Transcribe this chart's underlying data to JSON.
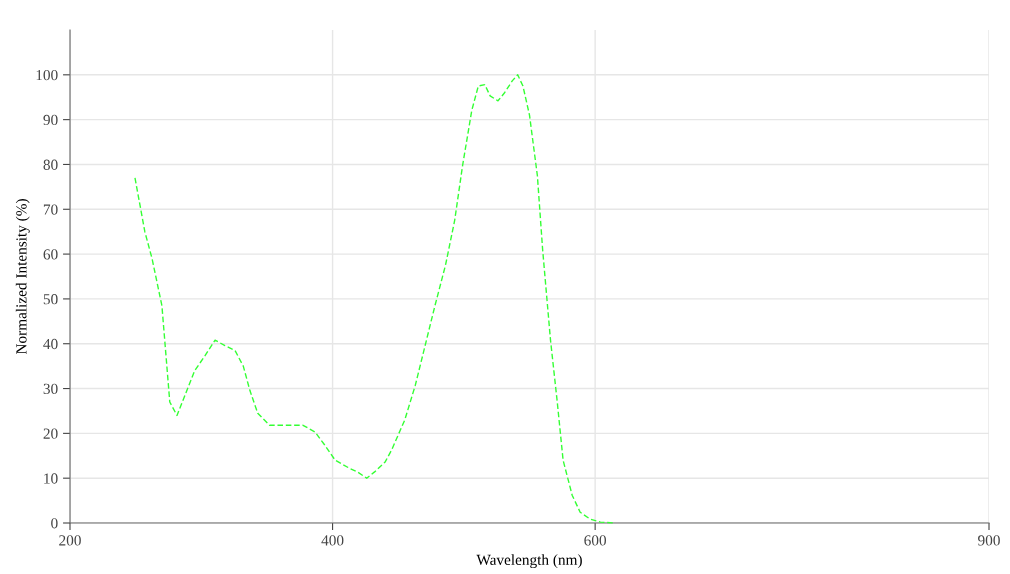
{
  "chart_data": {
    "type": "line",
    "xlabel": "Wavelength (nm)",
    "ylabel": "Normalized Intensity (%)",
    "x": [
      249.5,
      257,
      262.5,
      270,
      276,
      281.5,
      287.6,
      295,
      303,
      310.5,
      318,
      325.7,
      332,
      337,
      343,
      352,
      364,
      377.5,
      386.7,
      394,
      402,
      413,
      419,
      426,
      432,
      440,
      445,
      455,
      463,
      470.5,
      478,
      486,
      493,
      499,
      506,
      511,
      516,
      520,
      526,
      531,
      537,
      541,
      545,
      550,
      556,
      560,
      566,
      571,
      575.6,
      582.5,
      588.6,
      596,
      604,
      615
    ],
    "series": [
      {
        "color": "#33ff33",
        "values": [
          77,
          65,
          59,
          48.5,
          27,
          24,
          28.5,
          34,
          37.4,
          40.8,
          39.6,
          38.5,
          35,
          29.6,
          24.5,
          21.8,
          21.8,
          21.8,
          20.3,
          17.4,
          14,
          12.2,
          11.4,
          10,
          11.4,
          13.6,
          16.3,
          23,
          30.7,
          39.6,
          48.5,
          57.5,
          67.5,
          79.7,
          92,
          97.5,
          97.8,
          95.3,
          94.2,
          96,
          98.7,
          100,
          97.5,
          91,
          77.5,
          61,
          40.8,
          27.4,
          14,
          6.2,
          2.4,
          0.9,
          0.2,
          0
        ]
      }
    ],
    "xlim": [
      200,
      900
    ],
    "xticks": [
      200,
      400,
      600,
      900
    ],
    "ylim": [
      0,
      110
    ],
    "yticks": [
      0,
      10,
      20,
      30,
      40,
      50,
      60,
      70,
      80,
      90,
      100
    ],
    "grid": true,
    "line_style": "dashed",
    "marker": "none"
  }
}
